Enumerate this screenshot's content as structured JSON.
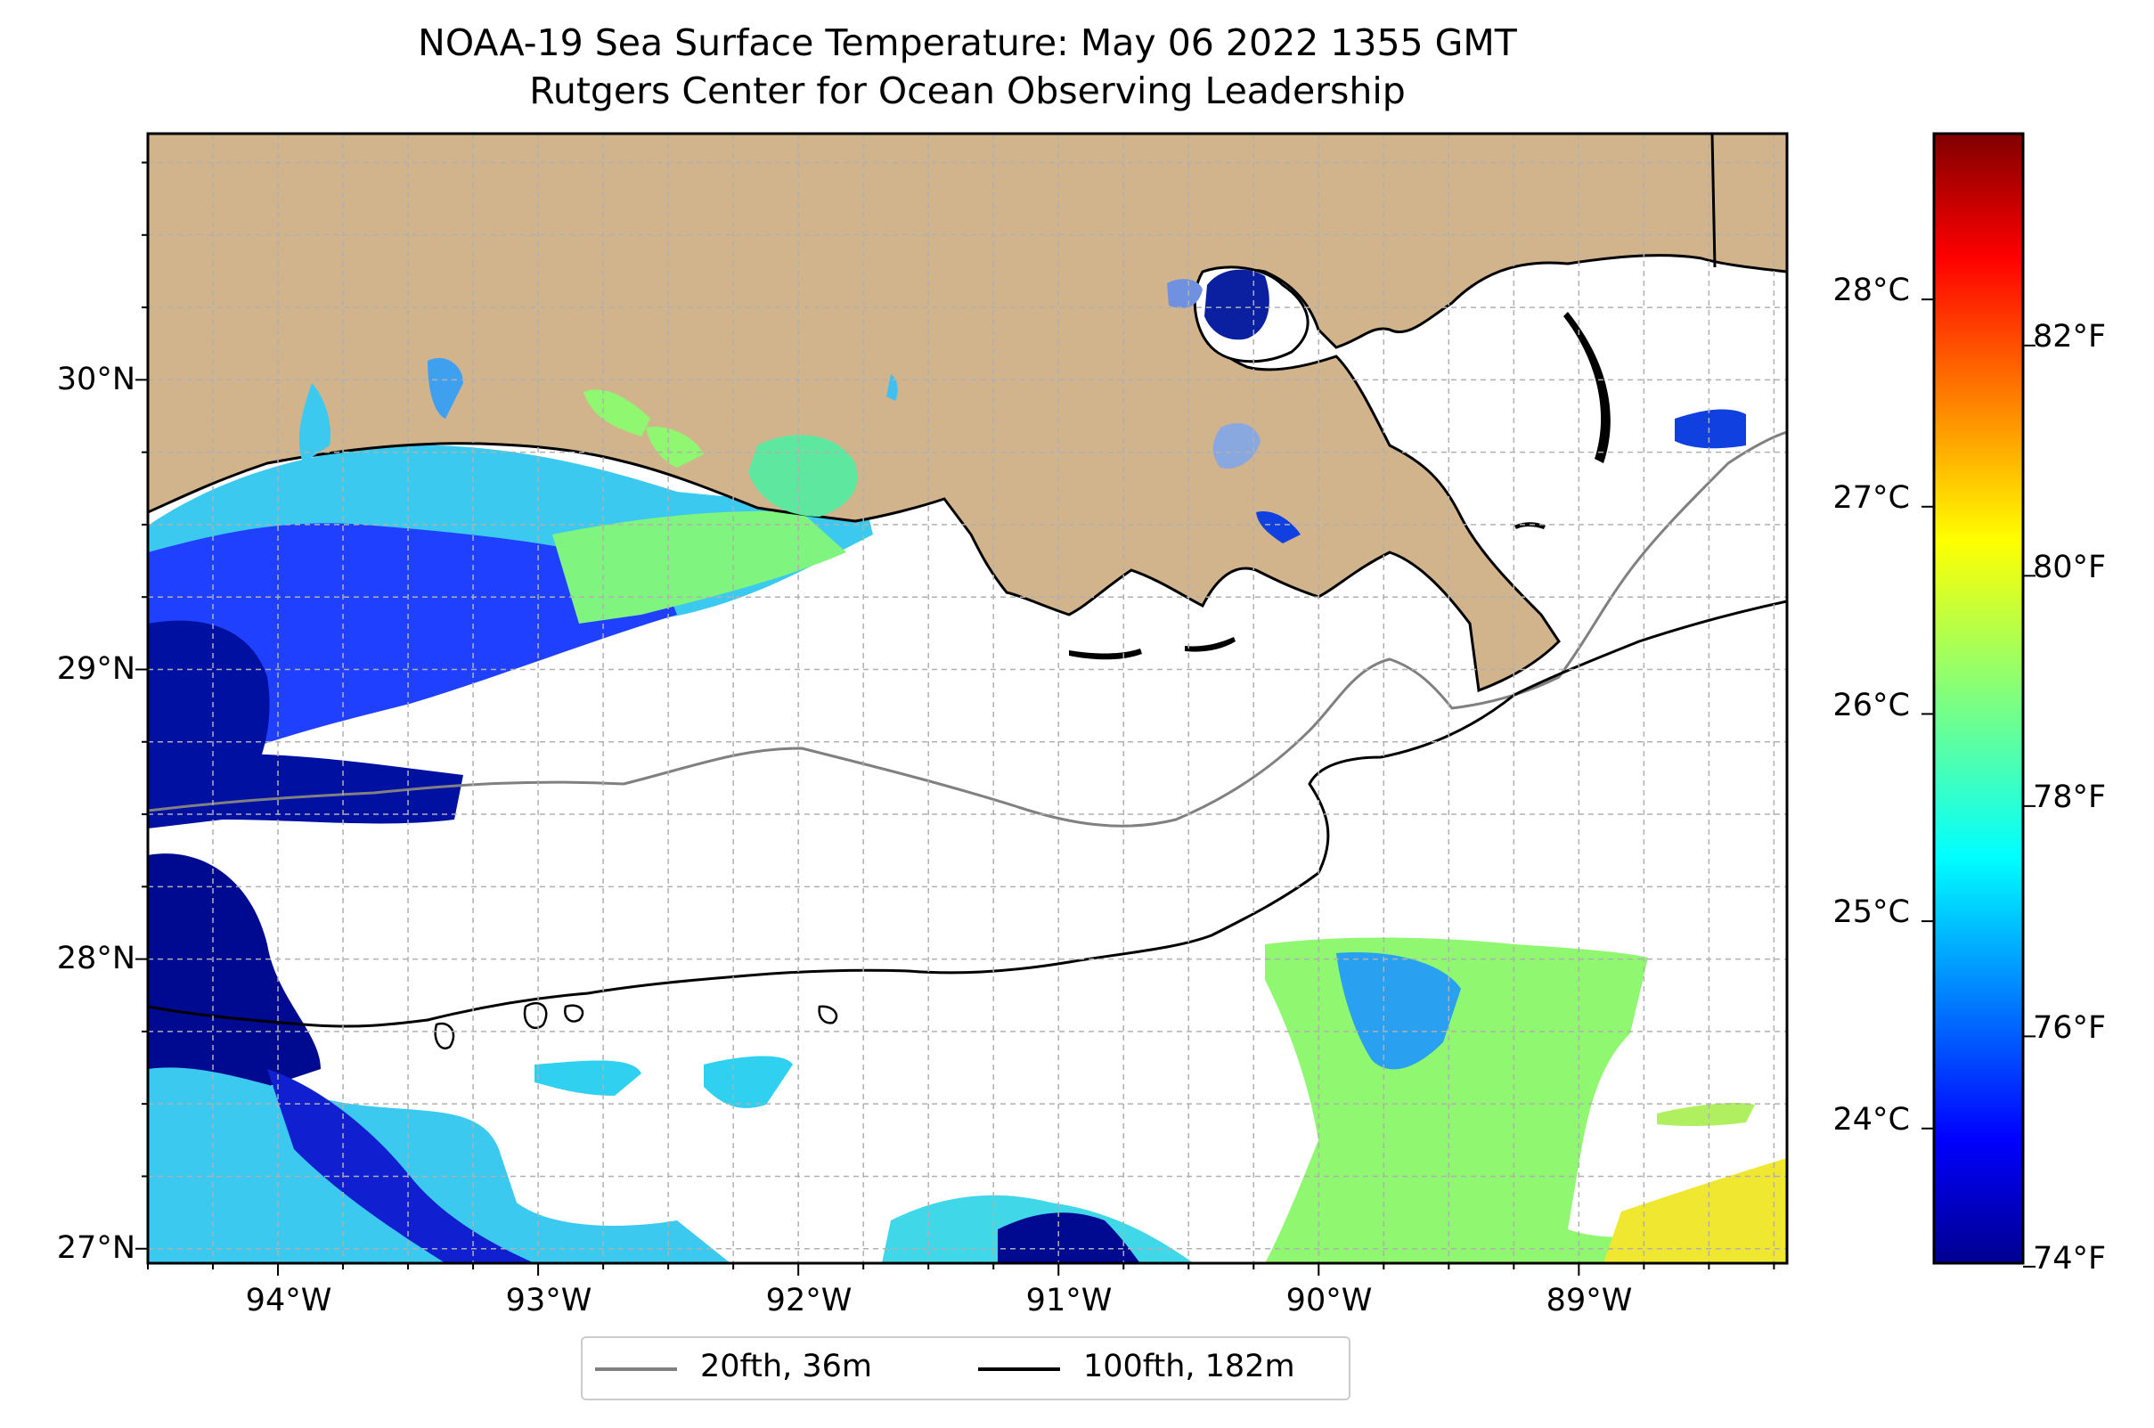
{
  "title": "NOAA-19 Sea Surface Temperature: May 06 2022 1355 GMT",
  "subtitle": "Rutgers Center for Ocean Observing Leadership",
  "colors": {
    "land": "#d2b48c",
    "ocean_nodata": "#ffffff",
    "isobath_20fth": "#808080",
    "isobath_100fth": "#000000",
    "grid": "#b0b0b0"
  },
  "map": {
    "lon_range": [
      -94.5,
      -88.2
    ],
    "lat_range": [
      26.95,
      30.85
    ],
    "x_ticks": [
      {
        "value": -94,
        "label": "94°W"
      },
      {
        "value": -93,
        "label": "93°W"
      },
      {
        "value": -92,
        "label": "92°W"
      },
      {
        "value": -91,
        "label": "91°W"
      },
      {
        "value": -90,
        "label": "90°W"
      },
      {
        "value": -89,
        "label": "89°W"
      }
    ],
    "y_ticks": [
      {
        "value": 30,
        "label": "30°N"
      },
      {
        "value": 29,
        "label": "29°N"
      },
      {
        "value": 28,
        "label": "28°N"
      },
      {
        "value": 27,
        "label": "27°N"
      }
    ]
  },
  "colorbar": {
    "colormap": "jet",
    "range_celsius": [
      23.35,
      28.8
    ],
    "celsius_ticks": [
      "24°C",
      "25°C",
      "26°C",
      "27°C",
      "28°C"
    ],
    "fahrenheit_ticks": [
      "74°F",
      "76°F",
      "78°F",
      "80°F",
      "82°F"
    ]
  },
  "legend": {
    "position": "bottom-center",
    "items": [
      {
        "label": "20fth, 36m",
        "color": "#808080"
      },
      {
        "label": "100fth, 182m",
        "color": "#000000"
      }
    ]
  }
}
